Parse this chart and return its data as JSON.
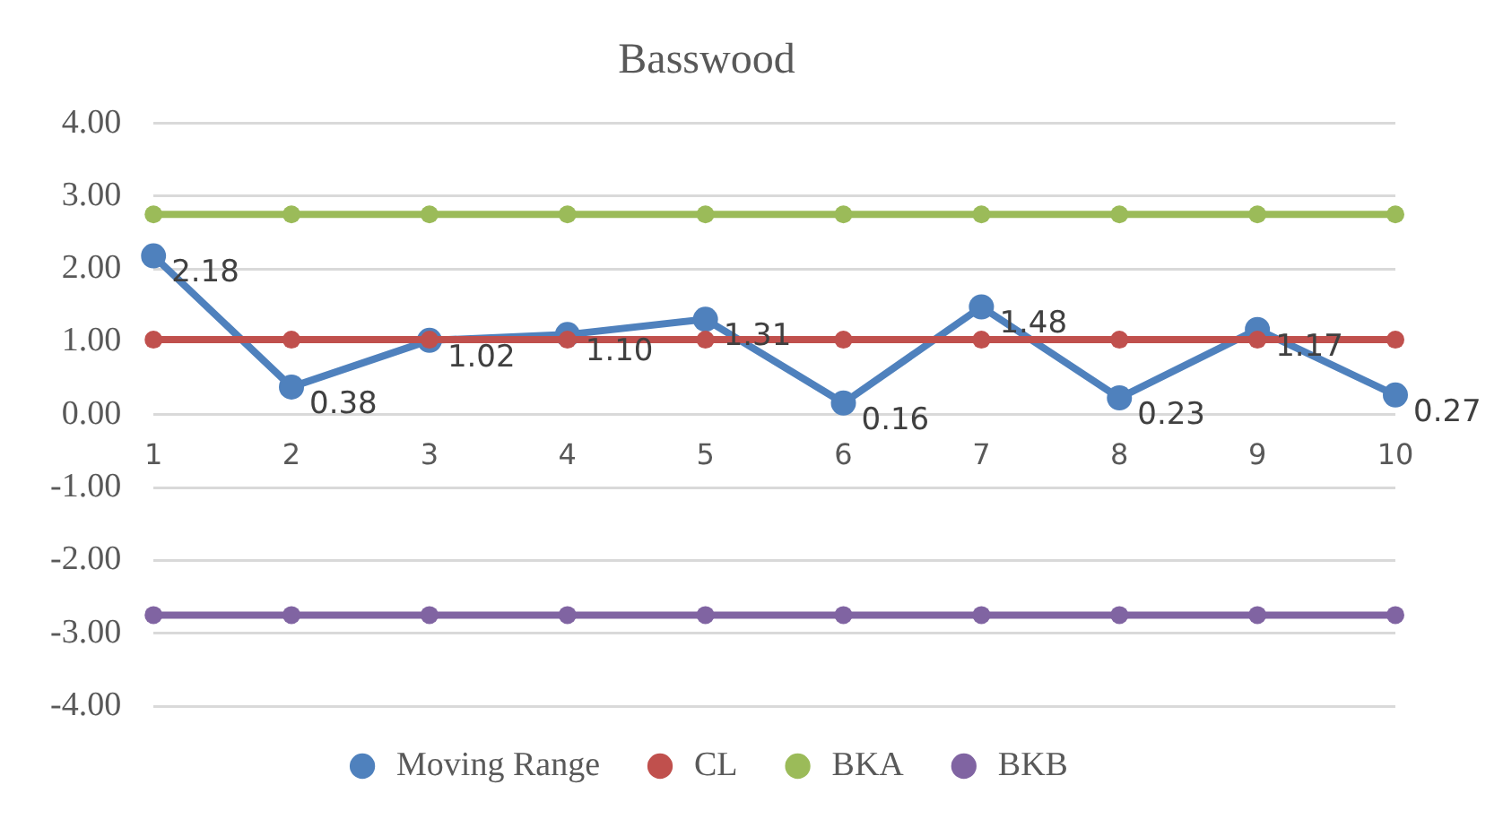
{
  "chart_data": {
    "type": "line",
    "title": "Basswood",
    "categories": [
      "1",
      "2",
      "3",
      "4",
      "5",
      "6",
      "7",
      "8",
      "9",
      "10"
    ],
    "series": [
      {
        "name": "Moving Range",
        "color": "#4f81bd",
        "values": [
          2.18,
          0.38,
          1.02,
          1.1,
          1.31,
          0.16,
          1.48,
          0.23,
          1.17,
          0.27
        ],
        "value_labels": [
          "2.18",
          "0.38",
          "1.02",
          "1.10",
          "1.31",
          "0.16",
          "1.48",
          "0.23",
          "1.17",
          "0.27"
        ]
      },
      {
        "name": "CL",
        "color": "#c0504d",
        "values": [
          1.03,
          1.03,
          1.03,
          1.03,
          1.03,
          1.03,
          1.03,
          1.03,
          1.03,
          1.03
        ]
      },
      {
        "name": "BKA",
        "color": "#9bbb59",
        "values": [
          2.75,
          2.75,
          2.75,
          2.75,
          2.75,
          2.75,
          2.75,
          2.75,
          2.75,
          2.75
        ]
      },
      {
        "name": "BKB",
        "color": "#8064a2",
        "values": [
          -2.75,
          -2.75,
          -2.75,
          -2.75,
          -2.75,
          -2.75,
          -2.75,
          -2.75,
          -2.75,
          -2.75
        ]
      }
    ],
    "ylim": [
      -4,
      4
    ],
    "yticks": [
      {
        "value": -4,
        "label": "-4.00"
      },
      {
        "value": -3,
        "label": "-3.00"
      },
      {
        "value": -2,
        "label": "-2.00"
      },
      {
        "value": -1,
        "label": "-1.00"
      },
      {
        "value": 0,
        "label": "0.00"
      },
      {
        "value": 1,
        "label": "1.00"
      },
      {
        "value": 2,
        "label": "2.00"
      },
      {
        "value": 3,
        "label": "3.00"
      },
      {
        "value": 4,
        "label": "4.00"
      }
    ],
    "grid": "y",
    "legend": "bottom",
    "marker": "circle",
    "line_style": "solid"
  }
}
